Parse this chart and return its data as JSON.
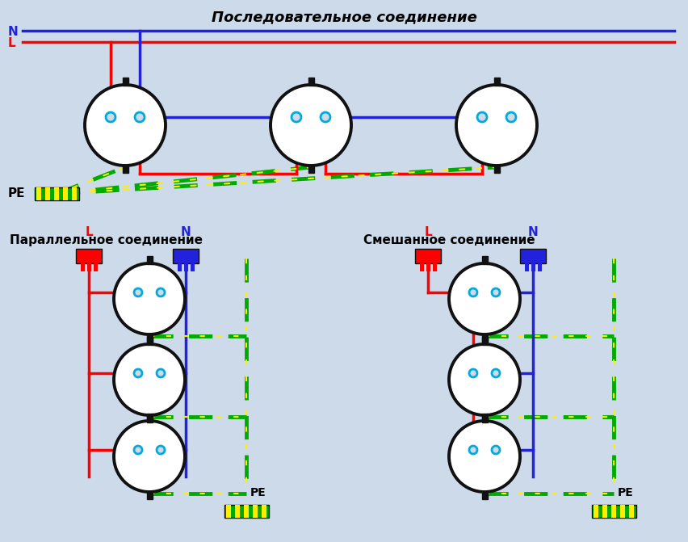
{
  "title": "Последовательное соединение",
  "subtitle_parallel": "Параллельное соединение",
  "subtitle_mixed": "Смешанное соединение",
  "bg_color": "#cddaea",
  "wire_red": "#ff0000",
  "wire_blue": "#2222dd",
  "wire_dark_blue": "#1a1aaa",
  "wire_green": "#00aa00",
  "wire_yellow": "#ffee00",
  "socket_outline": "#111111",
  "socket_fill": "#ffffff",
  "pe_green": "#00aa00",
  "pe_yellow": "#ffee00",
  "text_black": "#000000",
  "text_red": "#ff0000",
  "text_blue": "#2222dd",
  "label_N": "N",
  "label_L": "L",
  "label_PE": "PE",
  "seq_sock_r": 50,
  "par_sock_r": 44,
  "lw_wire": 2.5,
  "lw_socket": 2.8
}
